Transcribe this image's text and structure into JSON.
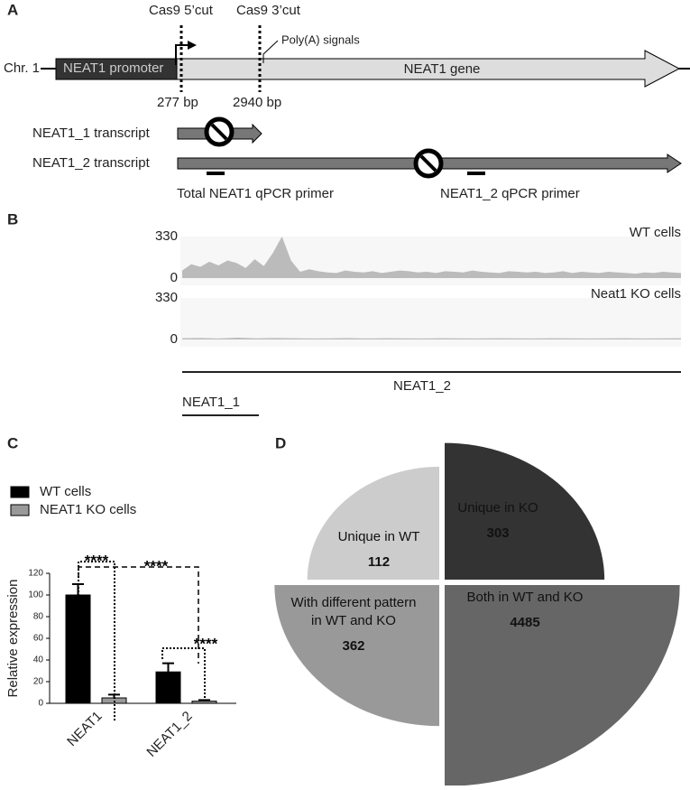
{
  "panel_a": {
    "label": "A",
    "cut5": "Cas9 5’cut",
    "cut3": "Cas9 3’cut",
    "polya": "Poly(A) signals",
    "chr": "Chr. 1",
    "promoter": "NEAT1 promoter",
    "gene": "NEAT1 gene",
    "bp5": "277 bp",
    "bp3": "2940 bp",
    "t1": "NEAT1_1 transcript",
    "t2": "NEAT1_2 transcript",
    "p1": "Total NEAT1 qPCR primer",
    "p2": "NEAT1_2 qPCR primer"
  },
  "panel_b": {
    "label": "B",
    "tracks": [
      {
        "name": "WT cells",
        "ylim": [
          0,
          330
        ],
        "coverage": [
          60,
          110,
          90,
          130,
          100,
          140,
          120,
          80,
          150,
          95,
          200,
          330,
          140,
          50,
          70,
          55,
          45,
          40,
          60,
          50,
          45,
          55,
          40,
          50,
          60,
          55,
          45,
          50,
          40,
          55,
          50,
          45,
          60,
          50,
          45,
          40,
          55,
          50,
          45,
          50,
          40,
          45,
          55,
          40,
          50,
          45,
          40,
          50,
          45,
          40,
          35,
          45,
          40,
          50,
          45,
          40
        ]
      },
      {
        "name": "Neat1 KO cells",
        "ylim": [
          0,
          330
        ],
        "coverage": [
          10,
          12,
          8,
          14,
          9,
          12,
          10,
          8,
          9,
          11,
          8,
          10,
          9,
          8,
          10,
          9,
          8,
          10,
          9,
          8,
          10,
          9,
          8,
          9,
          10,
          8,
          9,
          10
        ]
      }
    ],
    "long": "NEAT1_2",
    "short": "NEAT1_1"
  },
  "chart_data": [
    {
      "type": "bar",
      "panel": "C",
      "categories": [
        "NEAT1",
        "NEAT1_2"
      ],
      "series": [
        {
          "name": "WT cells",
          "color": "#000000",
          "values": [
            100,
            29
          ],
          "errors": [
            10,
            8
          ]
        },
        {
          "name": "NEAT1 KO cells",
          "color": "#999999",
          "values": [
            5,
            2
          ],
          "errors": [
            3,
            1
          ]
        }
      ],
      "ylabel": "Relative expression",
      "ylim": [
        0,
        120
      ],
      "yticks": [
        0,
        20,
        40,
        60,
        80,
        100,
        120
      ],
      "annotations": [
        "****",
        "****",
        "****"
      ]
    },
    {
      "type": "quadrant",
      "panel": "D",
      "categories": [
        [
          "Unique in WT"
        ],
        [
          "Unique in KO"
        ],
        [
          "With different pattern",
          "in WT and KO"
        ],
        [
          "Both in WT and KO"
        ]
      ],
      "values": [
        112,
        303,
        362,
        4485
      ],
      "colors": [
        "#cccccc",
        "#333333",
        "#999999",
        "#666666"
      ]
    }
  ]
}
